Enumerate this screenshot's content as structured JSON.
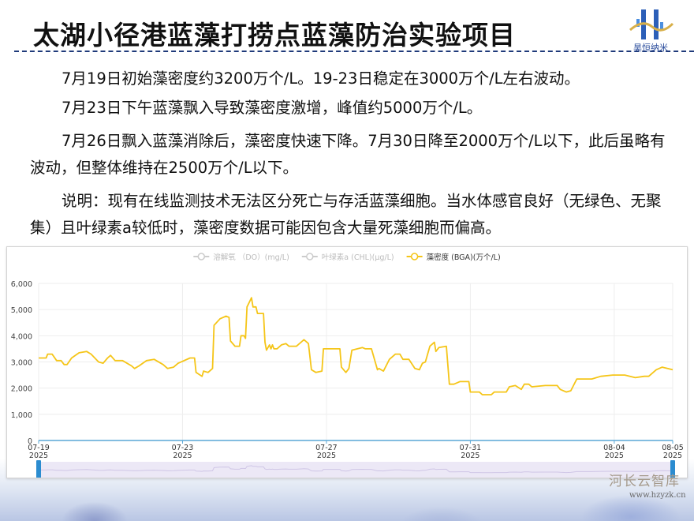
{
  "header": {
    "title": "太湖小径港蓝藻打捞点蓝藻防治实验项目",
    "logo_text": "昊恒纳米"
  },
  "paragraphs": [
    "7月19日初始藻密度约3200万个/L。19-23日稳定在3000万个/L左右波动。",
    "7月23日下午蓝藻飘入导致藻密度激增，峰值约5000万个/L。",
    "7月26日飘入蓝藻消除后，藻密度快速下降。7月30日降至2000万个/L以下，此后虽略有波动，但整体维持在2500万个/L以下。",
    "说明：现有在线监测技术无法区分死亡与存活蓝藻细胞。当水体感官良好（无绿色、无聚集）且叶绿素a较低时，藻密度数据可能因包含大量死藻细胞而偏高。"
  ],
  "watermark": {
    "name": "河长云智库",
    "url": "www.hzyzk.cn"
  },
  "chart_data": {
    "type": "line",
    "legend": [
      {
        "name": "溶解氧 （DO）(mg/L)",
        "active": false,
        "color": "#cccccc"
      },
      {
        "name": "叶绿素a (CHL)(μg/L)",
        "active": false,
        "color": "#cccccc"
      },
      {
        "name": "藻密度 (BGA)(万个/L)",
        "active": true,
        "color": "#f5c518"
      }
    ],
    "legend_placement": "top-center",
    "xrange": [
      "2025-07-19 00:00",
      "2025-08-05 15:00"
    ],
    "xticks": [
      {
        "date": "2025-07-19 00:00",
        "label": [
          "07-19",
          "2025"
        ]
      },
      {
        "date": "2025-07-23 00:00",
        "label": [
          "07-23",
          "2025"
        ]
      },
      {
        "date": "2025-07-27 00:00",
        "label": [
          "07-27",
          "2025"
        ]
      },
      {
        "date": "2025-07-31 00:00",
        "label": [
          "07-31",
          "2025"
        ]
      },
      {
        "date": "2025-08-04 00:00",
        "label": [
          "08-04",
          "2025"
        ]
      },
      {
        "date": "2025-08-05 15:00",
        "label": [
          "08-05",
          "2025"
        ]
      }
    ],
    "ylim": [
      0,
      6000
    ],
    "yticks": [
      0,
      1000,
      2000,
      3000,
      4000,
      5000,
      6000
    ],
    "ytick_labels": [
      "0",
      "1,000",
      "2,000",
      "3,000",
      "4,000",
      "5,000",
      "6,000"
    ],
    "grid": true,
    "datazoom_slider": true,
    "series": [
      {
        "name": "藻密度 (BGA)(万个/L)",
        "color": "#f5c518",
        "points": [
          [
            "2025-07-19 00:00",
            3150
          ],
          [
            "2025-07-19 05:00",
            3150
          ],
          [
            "2025-07-19 06:00",
            3300
          ],
          [
            "2025-07-19 09:00",
            3300
          ],
          [
            "2025-07-19 12:00",
            3050
          ],
          [
            "2025-07-19 15:00",
            3050
          ],
          [
            "2025-07-19 17:00",
            2900
          ],
          [
            "2025-07-19 19:00",
            2900
          ],
          [
            "2025-07-19 22:00",
            3150
          ],
          [
            "2025-07-20 03:00",
            3350
          ],
          [
            "2025-07-20 08:00",
            3400
          ],
          [
            "2025-07-20 11:00",
            3300
          ],
          [
            "2025-07-20 16:00",
            3000
          ],
          [
            "2025-07-20 19:00",
            2950
          ],
          [
            "2025-07-20 22:00",
            3150
          ],
          [
            "2025-07-21 00:00",
            3250
          ],
          [
            "2025-07-21 03:00",
            3050
          ],
          [
            "2025-07-21 08:00",
            3050
          ],
          [
            "2025-07-21 14:00",
            2850
          ],
          [
            "2025-07-21 16:00",
            2750
          ],
          [
            "2025-07-21 19:00",
            2850
          ],
          [
            "2025-07-22 00:00",
            3050
          ],
          [
            "2025-07-22 05:00",
            3100
          ],
          [
            "2025-07-22 11:00",
            2900
          ],
          [
            "2025-07-22 14:00",
            2750
          ],
          [
            "2025-07-22 18:00",
            2800
          ],
          [
            "2025-07-22 21:00",
            2950
          ],
          [
            "2025-07-23 05:00",
            3150
          ],
          [
            "2025-07-23 08:00",
            3150
          ],
          [
            "2025-07-23 09:00",
            2600
          ],
          [
            "2025-07-23 13:00",
            2450
          ],
          [
            "2025-07-23 14:00",
            2650
          ],
          [
            "2025-07-23 17:00",
            2600
          ],
          [
            "2025-07-23 20:00",
            2750
          ],
          [
            "2025-07-23 21:00",
            4400
          ],
          [
            "2025-07-24 01:00",
            4650
          ],
          [
            "2025-07-24 05:00",
            4750
          ],
          [
            "2025-07-24 07:00",
            4700
          ],
          [
            "2025-07-24 08:00",
            3800
          ],
          [
            "2025-07-24 11:00",
            3600
          ],
          [
            "2025-07-24 14:00",
            3600
          ],
          [
            "2025-07-24 15:00",
            4000
          ],
          [
            "2025-07-24 17:00",
            4000
          ],
          [
            "2025-07-24 18:00",
            3900
          ],
          [
            "2025-07-24 19:00",
            5100
          ],
          [
            "2025-07-24 22:00",
            5450
          ],
          [
            "2025-07-24 23:00",
            5100
          ],
          [
            "2025-07-25 01:00",
            5100
          ],
          [
            "2025-07-25 02:00",
            4850
          ],
          [
            "2025-07-25 06:00",
            4850
          ],
          [
            "2025-07-25 07:00",
            3750
          ],
          [
            "2025-07-25 08:00",
            3450
          ],
          [
            "2025-07-25 10:00",
            3650
          ],
          [
            "2025-07-25 11:00",
            3500
          ],
          [
            "2025-07-25 12:00",
            3650
          ],
          [
            "2025-07-25 13:00",
            3500
          ],
          [
            "2025-07-25 15:00",
            3500
          ],
          [
            "2025-07-25 18:00",
            3650
          ],
          [
            "2025-07-25 21:00",
            3700
          ],
          [
            "2025-07-25 23:00",
            3600
          ],
          [
            "2025-07-26 04:00",
            3600
          ],
          [
            "2025-07-26 09:00",
            3850
          ],
          [
            "2025-07-26 11:00",
            3750
          ],
          [
            "2025-07-26 12:00",
            3700
          ],
          [
            "2025-07-26 14:00",
            2700
          ],
          [
            "2025-07-26 17:00",
            2600
          ],
          [
            "2025-07-26 21:00",
            2650
          ],
          [
            "2025-07-26 22:00",
            3500
          ],
          [
            "2025-07-27 06:00",
            3500
          ],
          [
            "2025-07-27 09:00",
            3500
          ],
          [
            "2025-07-27 10:00",
            2800
          ],
          [
            "2025-07-27 13:00",
            2600
          ],
          [
            "2025-07-27 15:00",
            2750
          ],
          [
            "2025-07-27 17:00",
            3450
          ],
          [
            "2025-07-28 00:00",
            3550
          ],
          [
            "2025-07-28 02:00",
            3500
          ],
          [
            "2025-07-28 06:00",
            3500
          ],
          [
            "2025-07-28 10:00",
            2700
          ],
          [
            "2025-07-28 11:00",
            2750
          ],
          [
            "2025-07-28 14:00",
            2650
          ],
          [
            "2025-07-28 18:00",
            3100
          ],
          [
            "2025-07-28 22:00",
            3300
          ],
          [
            "2025-07-29 01:00",
            3300
          ],
          [
            "2025-07-29 03:00",
            3100
          ],
          [
            "2025-07-29 07:00",
            3100
          ],
          [
            "2025-07-29 11:00",
            2750
          ],
          [
            "2025-07-29 14:00",
            2700
          ],
          [
            "2025-07-29 16:00",
            2950
          ],
          [
            "2025-07-29 18:00",
            3000
          ],
          [
            "2025-07-29 21:00",
            3600
          ],
          [
            "2025-07-30 00:00",
            3750
          ],
          [
            "2025-07-30 01:00",
            3400
          ],
          [
            "2025-07-30 03:00",
            3550
          ],
          [
            "2025-07-30 08:00",
            3600
          ],
          [
            "2025-07-30 10:00",
            2150
          ],
          [
            "2025-07-30 13:00",
            2150
          ],
          [
            "2025-07-30 17:00",
            2250
          ],
          [
            "2025-07-30 23:00",
            2250
          ],
          [
            "2025-07-31 00:00",
            1850
          ],
          [
            "2025-07-31 06:00",
            1850
          ],
          [
            "2025-07-31 08:00",
            1750
          ],
          [
            "2025-07-31 14:00",
            1750
          ],
          [
            "2025-07-31 16:00",
            1850
          ],
          [
            "2025-08-01 00:00",
            1850
          ],
          [
            "2025-08-01 02:00",
            2050
          ],
          [
            "2025-08-01 06:00",
            2100
          ],
          [
            "2025-08-01 10:00",
            1950
          ],
          [
            "2025-08-01 12:00",
            2150
          ],
          [
            "2025-08-01 15:00",
            2150
          ],
          [
            "2025-08-01 17:00",
            2050
          ],
          [
            "2025-08-02 02:00",
            2100
          ],
          [
            "2025-08-02 10:00",
            2100
          ],
          [
            "2025-08-02 12:00",
            1950
          ],
          [
            "2025-08-02 16:00",
            1850
          ],
          [
            "2025-08-02 19:00",
            1900
          ],
          [
            "2025-08-02 23:00",
            2350
          ],
          [
            "2025-08-03 09:00",
            2350
          ],
          [
            "2025-08-03 15:00",
            2450
          ],
          [
            "2025-08-03 23:00",
            2500
          ],
          [
            "2025-08-04 07:00",
            2500
          ],
          [
            "2025-08-04 14:00",
            2400
          ],
          [
            "2025-08-04 20:00",
            2450
          ],
          [
            "2025-08-04 23:00",
            2450
          ],
          [
            "2025-08-05 04:00",
            2700
          ],
          [
            "2025-08-05 08:00",
            2800
          ],
          [
            "2025-08-05 15:00",
            2700
          ]
        ]
      }
    ]
  }
}
